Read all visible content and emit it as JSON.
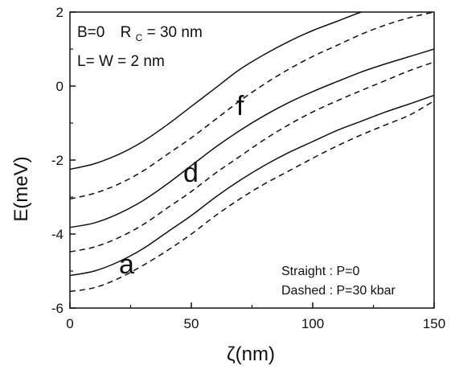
{
  "chart_data": {
    "type": "line",
    "xlabel": "ζ(nm)",
    "ylabel": "E(meV)",
    "xlim": [
      0,
      150
    ],
    "ylim": [
      -6,
      2
    ],
    "xticks": [
      "0",
      "50",
      "100",
      "150"
    ],
    "yticks": [
      "2",
      "0",
      "-2",
      "-4",
      "-6"
    ],
    "grid": false,
    "annotations": {
      "params_line1_a": "B=0",
      "params_line1_b": "R",
      "params_line1_sub": "C",
      "params_line1_c": "= 30 nm",
      "params_line2": "L= W = 2 nm",
      "legend_line1": "Straight : P=0",
      "legend_line2": "Dashed : P=30 kbar",
      "label_a": "a",
      "label_d": "d",
      "label_f": "f"
    },
    "x": [
      0,
      10,
      20,
      30,
      40,
      50,
      60,
      70,
      80,
      90,
      100,
      110,
      120,
      130,
      140,
      150
    ],
    "series": [
      {
        "style": "solid",
        "curve": "f",
        "values": [
          -2.25,
          -2.1,
          -1.85,
          -1.5,
          -1.05,
          -0.55,
          -0.05,
          0.45,
          0.85,
          1.2,
          1.5,
          1.75,
          2.0,
          2.2,
          2.35,
          2.5
        ]
      },
      {
        "style": "dashed",
        "curve": "f",
        "values": [
          -3.05,
          -2.9,
          -2.65,
          -2.3,
          -1.85,
          -1.4,
          -0.9,
          -0.4,
          0.05,
          0.45,
          0.8,
          1.1,
          1.4,
          1.65,
          1.85,
          2.0
        ]
      },
      {
        "style": "solid",
        "curve": "d",
        "values": [
          -3.82,
          -3.7,
          -3.45,
          -3.1,
          -2.65,
          -2.15,
          -1.65,
          -1.2,
          -0.8,
          -0.45,
          -0.15,
          0.12,
          0.38,
          0.6,
          0.8,
          1.0
        ]
      },
      {
        "style": "dashed",
        "curve": "d",
        "values": [
          -4.48,
          -4.35,
          -4.1,
          -3.75,
          -3.3,
          -2.85,
          -2.35,
          -1.9,
          -1.45,
          -1.05,
          -0.7,
          -0.4,
          -0.12,
          0.15,
          0.42,
          0.65
        ]
      },
      {
        "style": "solid",
        "curve": "a",
        "values": [
          -5.12,
          -5.0,
          -4.75,
          -4.4,
          -3.95,
          -3.5,
          -3.0,
          -2.55,
          -2.15,
          -1.8,
          -1.5,
          -1.2,
          -0.95,
          -0.7,
          -0.48,
          -0.25
        ]
      },
      {
        "style": "dashed",
        "curve": "a",
        "values": [
          -5.55,
          -5.45,
          -5.2,
          -4.85,
          -4.45,
          -4.0,
          -3.5,
          -3.05,
          -2.65,
          -2.3,
          -1.95,
          -1.62,
          -1.32,
          -1.05,
          -0.78,
          -0.4
        ]
      }
    ]
  }
}
